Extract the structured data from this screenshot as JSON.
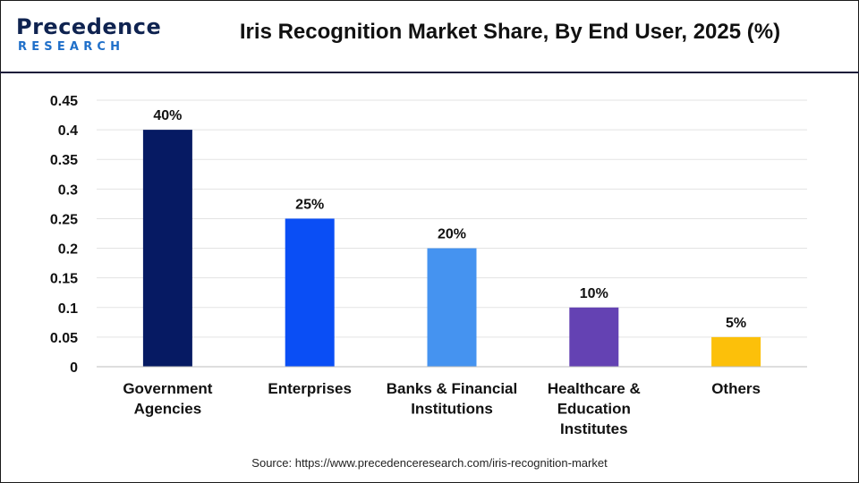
{
  "header": {
    "logo_top": "Precedence",
    "logo_bottom": "RESEARCH",
    "title": "Iris Recognition Market Share, By End User, 2025 (%)"
  },
  "source": "Source: https://www.precedenceresearch.com/iris-recognition-market",
  "chart_data": {
    "type": "bar",
    "title": "Iris Recognition Market Share, By End User, 2025 (%)",
    "xlabel": "",
    "ylabel": "",
    "categories": [
      [
        "Government",
        "Agencies"
      ],
      [
        "Enterprises"
      ],
      [
        "Banks & Financial",
        "Institutions"
      ],
      [
        "Healthcare &",
        "Education",
        "Institutes"
      ],
      [
        "Others"
      ]
    ],
    "values": [
      0.4,
      0.25,
      0.2,
      0.1,
      0.05
    ],
    "data_labels": [
      "40%",
      "25%",
      "20%",
      "10%",
      "5%"
    ],
    "colors": [
      "#061a63",
      "#0a4ef5",
      "#4593f0",
      "#6442b3",
      "#fcc00a"
    ],
    "ylim": [
      0,
      0.45
    ],
    "yticks": [
      "0",
      "0.05",
      "0.1",
      "0.15",
      "0.2",
      "0.25",
      "0.3",
      "0.35",
      "0.4",
      "0.45"
    ],
    "grid": true,
    "legend": "none"
  }
}
